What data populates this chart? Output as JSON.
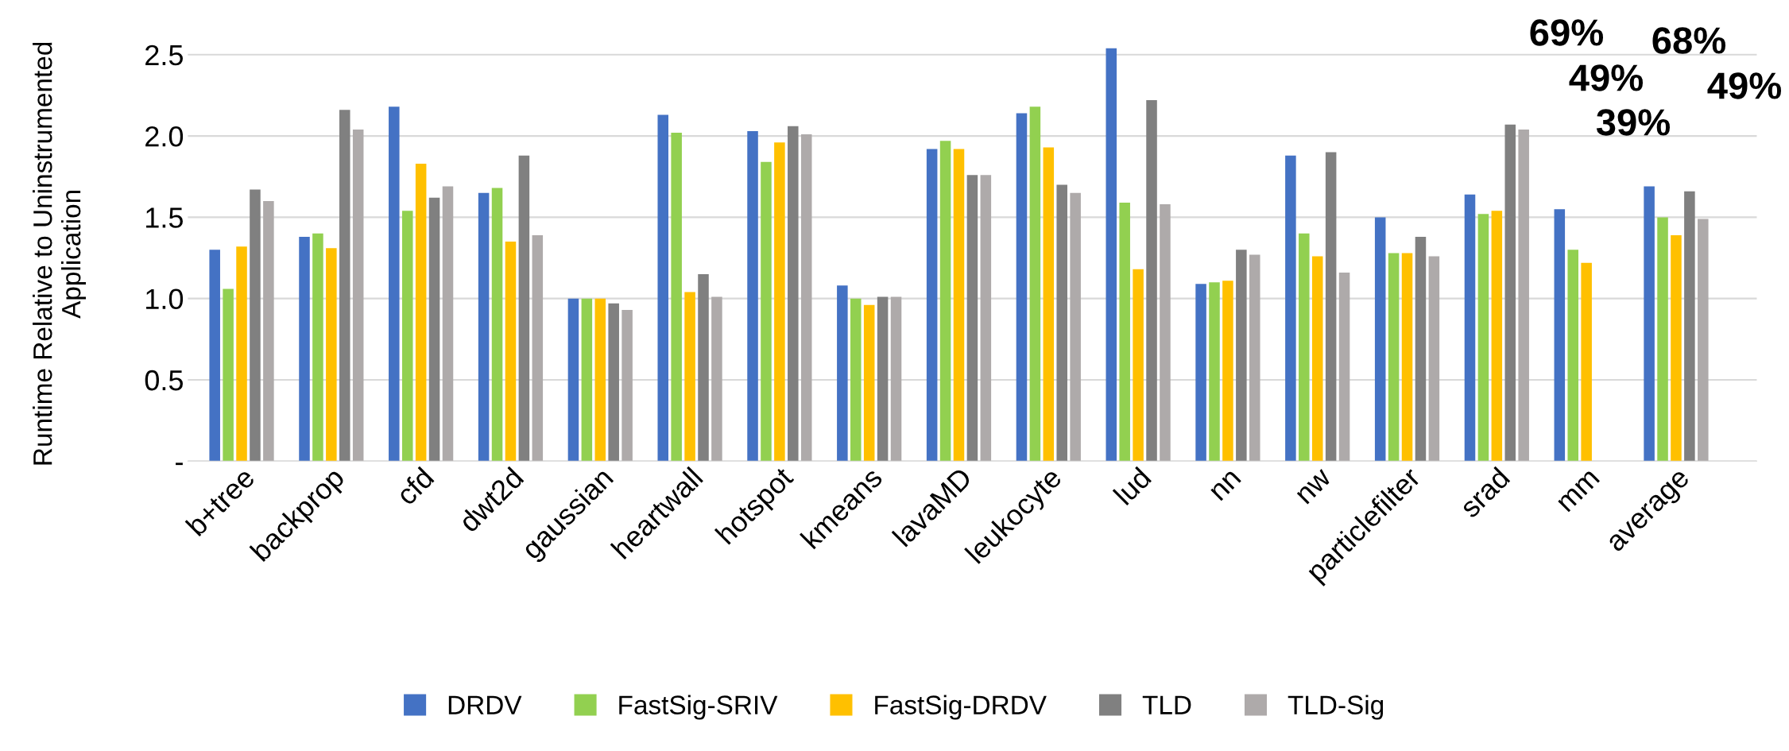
{
  "chart_data": {
    "type": "bar",
    "ylabel": "Runtime Relative to Uninstrumented Application",
    "categories": [
      "b+tree",
      "backprop",
      "cfd",
      "dwt2d",
      "gaussian",
      "heartwall",
      "hotspot",
      "kmeans",
      "lavaMD",
      "leukocyte",
      "lud",
      "nn",
      "nw",
      "particlefilter",
      "srad",
      "mm",
      "average"
    ],
    "series": [
      {
        "name": "DRDV",
        "color": "#4472c4",
        "values": [
          1.3,
          1.38,
          2.18,
          1.65,
          1.0,
          2.13,
          2.03,
          1.08,
          1.92,
          2.14,
          2.54,
          1.09,
          1.88,
          1.5,
          1.64,
          1.55,
          1.69
        ]
      },
      {
        "name": "FastSig-SRIV",
        "color": "#92d050",
        "values": [
          1.06,
          1.4,
          1.54,
          1.68,
          1.0,
          2.02,
          1.84,
          1.0,
          1.97,
          2.18,
          1.59,
          1.1,
          1.4,
          1.28,
          1.52,
          1.3,
          1.5
        ]
      },
      {
        "name": "FastSig-DRDV",
        "color": "#ffc000",
        "values": [
          1.32,
          1.31,
          1.83,
          1.35,
          1.0,
          1.04,
          1.96,
          0.96,
          1.92,
          1.93,
          1.18,
          1.11,
          1.26,
          1.28,
          1.54,
          1.22,
          1.39
        ]
      },
      {
        "name": "TLD",
        "color": "#808080",
        "values": [
          1.67,
          2.16,
          1.62,
          1.88,
          0.97,
          1.15,
          2.06,
          1.01,
          1.76,
          1.7,
          2.22,
          1.3,
          1.9,
          1.38,
          2.07,
          null,
          1.66
        ]
      },
      {
        "name": "TLD-Sig",
        "color": "#aeaaaa",
        "values": [
          1.6,
          2.04,
          1.69,
          1.39,
          0.93,
          1.01,
          2.01,
          1.01,
          1.76,
          1.65,
          1.58,
          1.27,
          1.16,
          1.26,
          2.04,
          null,
          1.49
        ]
      }
    ],
    "ylim": [
      0,
      2.55
    ],
    "yticks": [
      {
        "value": 0,
        "label": "-"
      },
      0.5,
      {
        "value": 1,
        "label": "1.0"
      },
      1.5,
      {
        "value": 2,
        "label": "2.0"
      },
      2.5
    ],
    "grid": "y",
    "legend": "bottom",
    "annotations": [
      "69%",
      "49%",
      "39%",
      "68%",
      "49%"
    ]
  }
}
